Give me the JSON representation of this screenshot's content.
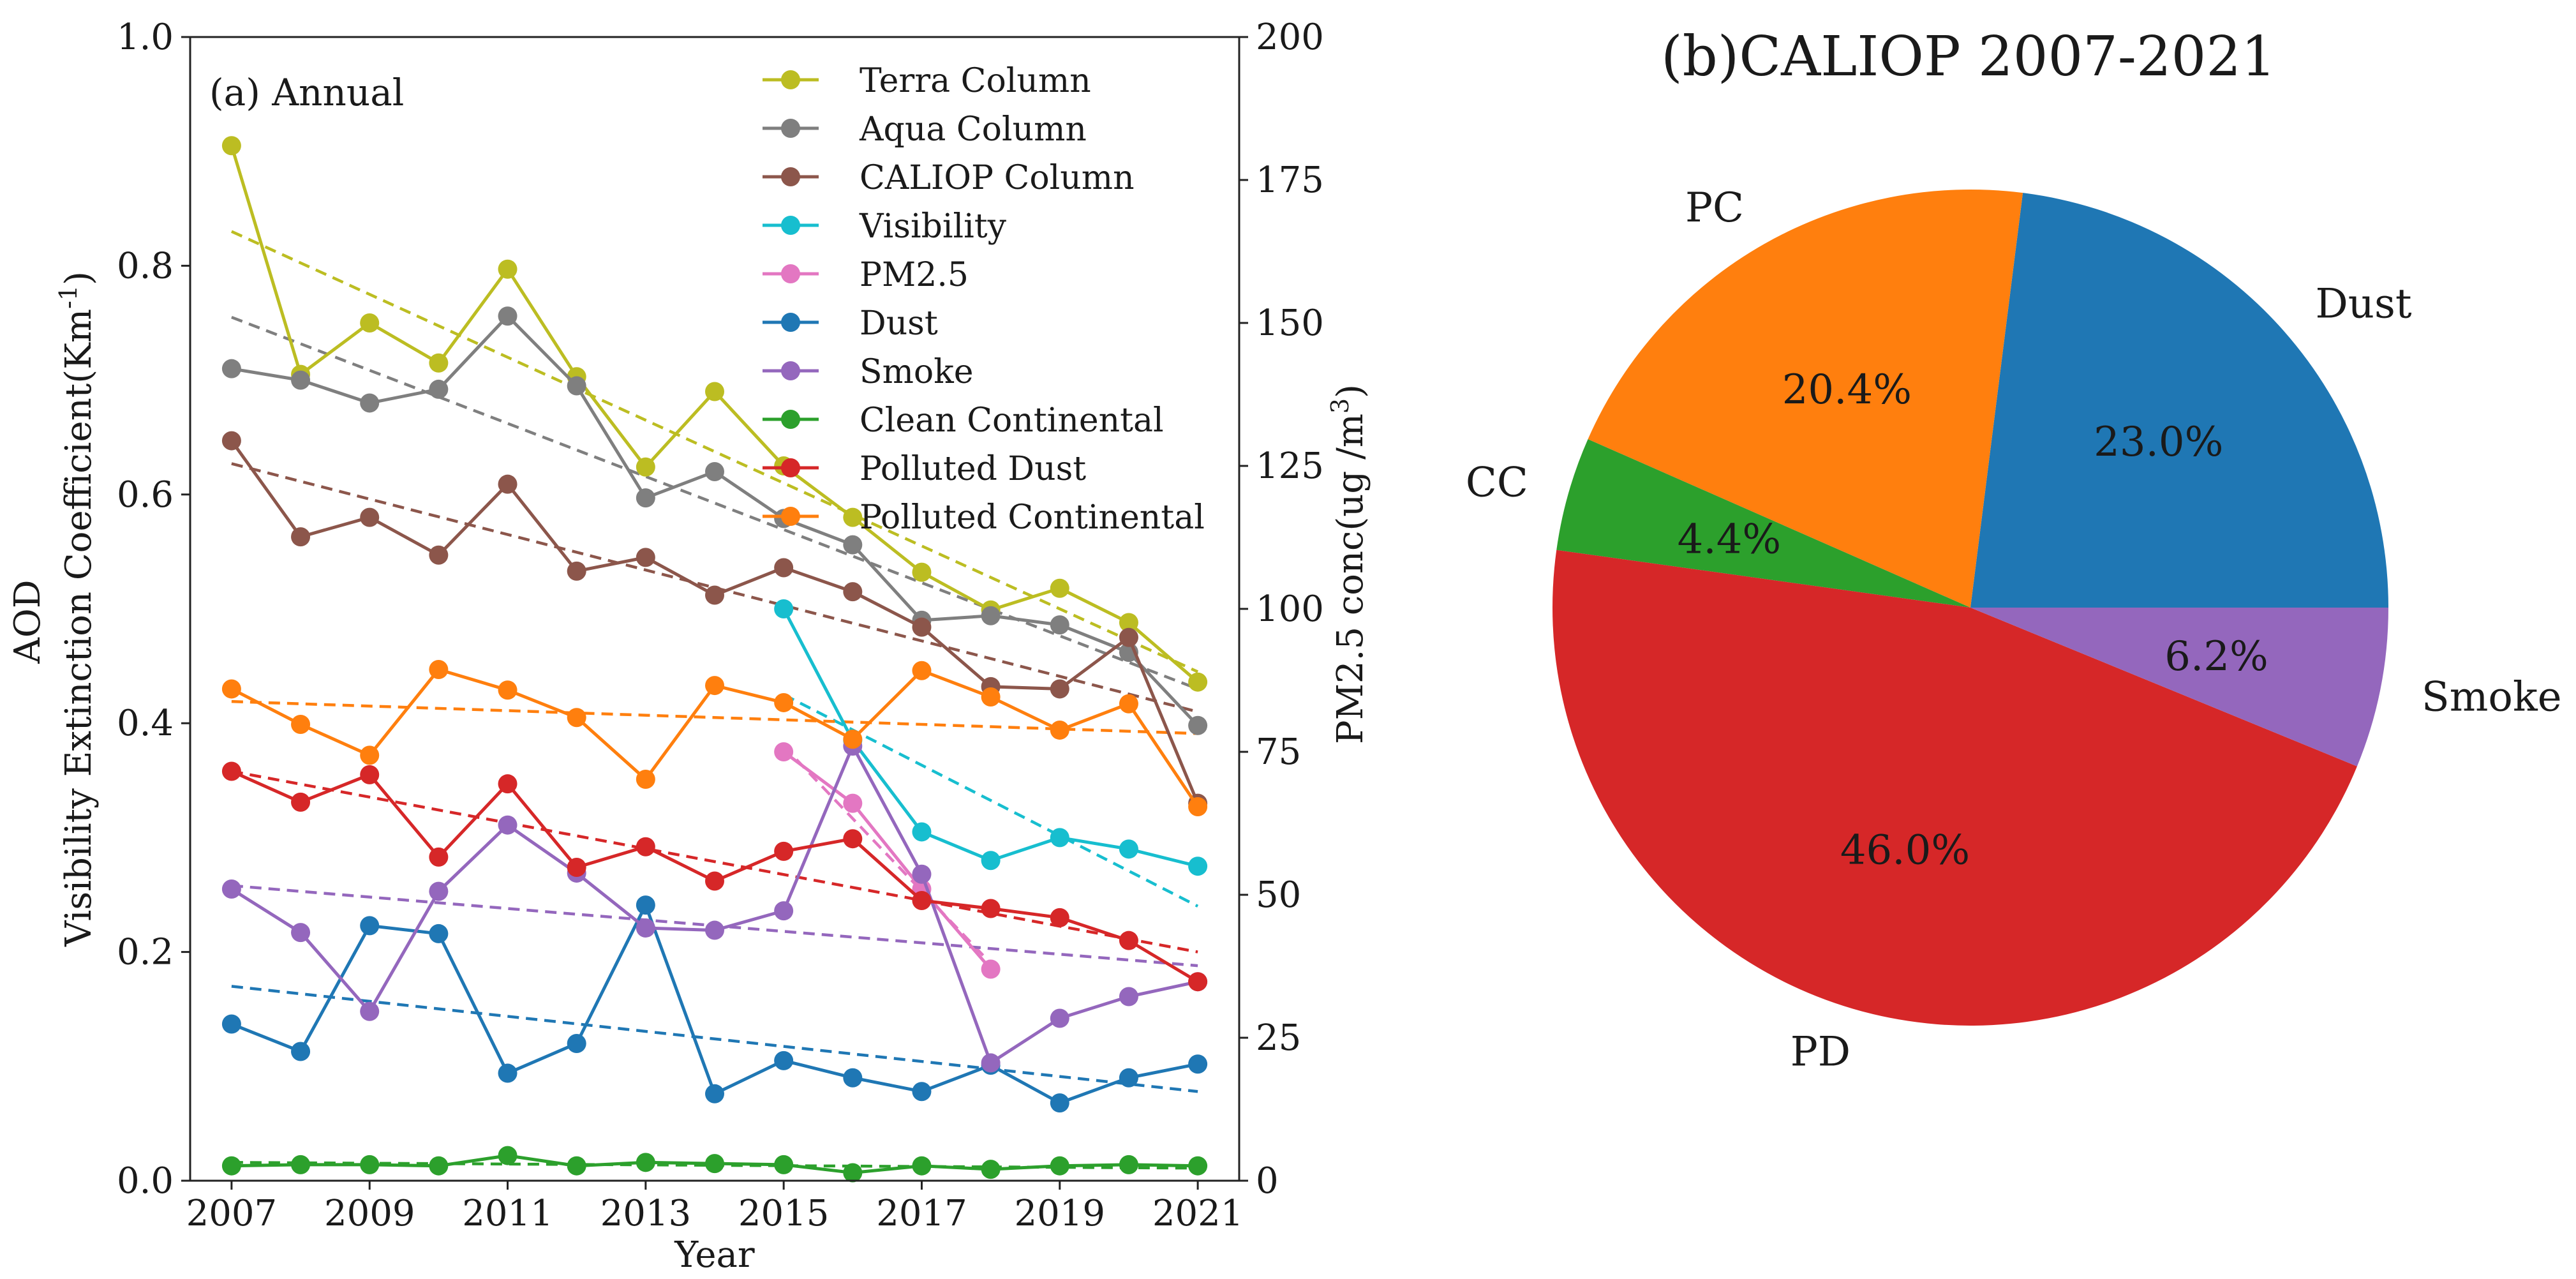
{
  "chart_data": [
    {
      "type": "line",
      "panel_label": "(a) Annual",
      "xlabel": "Year",
      "ylabel_line1": "AOD",
      "ylabel_line2": "Visibility Extinction Coefficient(Km",
      "ylabel_line2_sup": "-1",
      "ylabel_line2_end": ")",
      "y2label": "PM2.5 conc(ug /m",
      "y2label_sup": "3",
      "y2label_end": ")",
      "xlim": [
        2006.4,
        2021.6
      ],
      "ylim": [
        0.0,
        1.0
      ],
      "y2lim": [
        0,
        200
      ],
      "xticks": [
        2007,
        2009,
        2011,
        2013,
        2015,
        2017,
        2019,
        2021
      ],
      "yticks": [
        "0.0",
        "0.2",
        "0.4",
        "0.6",
        "0.8",
        "1.0"
      ],
      "y2ticks": [
        "0",
        "25",
        "50",
        "75",
        "100",
        "125",
        "150",
        "175",
        "200"
      ],
      "legend_position": "top-right",
      "series": [
        {
          "name": "Terra Column",
          "color": "#bcbd22",
          "axis": "left",
          "x": [
            2007,
            2008,
            2009,
            2010,
            2011,
            2012,
            2013,
            2014,
            2015,
            2016,
            2017,
            2018,
            2019,
            2020,
            2021
          ],
          "values": [
            0.905,
            0.705,
            0.75,
            0.715,
            0.797,
            0.703,
            0.624,
            0.69,
            0.625,
            0.58,
            0.532,
            0.499,
            0.518,
            0.488,
            0.436
          ],
          "trend": [
            0.83,
            0.445
          ]
        },
        {
          "name": "Aqua Column",
          "color": "#7f7f7f",
          "axis": "left",
          "x": [
            2007,
            2008,
            2009,
            2010,
            2011,
            2012,
            2013,
            2014,
            2015,
            2016,
            2017,
            2018,
            2019,
            2020,
            2021
          ],
          "values": [
            0.71,
            0.7,
            0.68,
            0.692,
            0.756,
            0.695,
            0.597,
            0.62,
            0.579,
            0.556,
            0.49,
            0.494,
            0.486,
            0.462,
            0.398
          ],
          "trend": [
            0.755,
            0.43
          ]
        },
        {
          "name": "CALIOP Column",
          "color": "#8c564b",
          "axis": "left",
          "x": [
            2007,
            2008,
            2009,
            2010,
            2011,
            2012,
            2013,
            2014,
            2015,
            2016,
            2017,
            2018,
            2019,
            2020,
            2021
          ],
          "values": [
            0.647,
            0.563,
            0.58,
            0.547,
            0.609,
            0.533,
            0.545,
            0.512,
            0.536,
            0.515,
            0.484,
            0.432,
            0.43,
            0.475,
            0.33
          ],
          "trend": [
            0.627,
            0.41
          ]
        },
        {
          "name": "Visibility",
          "color": "#17becf",
          "axis": "right",
          "x": [
            2015,
            2016,
            2017,
            2018,
            2019,
            2020,
            2021
          ],
          "values": [
            100,
            77,
            61,
            56,
            60,
            58,
            55
          ],
          "trend": [
            85,
            48
          ]
        },
        {
          "name": "PM2.5",
          "color": "#e377c2",
          "axis": "right",
          "x": [
            2015,
            2016,
            2017,
            2018
          ],
          "values": [
            75,
            66,
            51,
            37
          ],
          "trend": [
            76,
            38
          ]
        },
        {
          "name": "Dust",
          "color": "#1f77b4",
          "axis": "left",
          "x": [
            2007,
            2008,
            2009,
            2010,
            2011,
            2012,
            2013,
            2014,
            2015,
            2016,
            2017,
            2018,
            2019,
            2020,
            2021
          ],
          "values": [
            0.137,
            0.113,
            0.223,
            0.216,
            0.094,
            0.12,
            0.241,
            0.076,
            0.105,
            0.09,
            0.078,
            0.101,
            0.068,
            0.09,
            0.102
          ],
          "trend": [
            0.17,
            0.078
          ]
        },
        {
          "name": "Smoke",
          "color": "#9467bd",
          "axis": "left",
          "x": [
            2007,
            2008,
            2009,
            2010,
            2011,
            2012,
            2013,
            2014,
            2015,
            2016,
            2017,
            2018,
            2019,
            2020,
            2021
          ],
          "values": [
            0.255,
            0.217,
            0.148,
            0.253,
            0.311,
            0.269,
            0.221,
            0.219,
            0.236,
            0.38,
            0.268,
            0.103,
            0.142,
            0.161,
            0.174
          ],
          "trend": [
            0.258,
            0.188
          ]
        },
        {
          "name": "Clean Continental",
          "color": "#2ca02c",
          "axis": "left",
          "x": [
            2007,
            2008,
            2009,
            2010,
            2011,
            2012,
            2013,
            2014,
            2015,
            2016,
            2017,
            2018,
            2019,
            2020,
            2021
          ],
          "values": [
            0.013,
            0.014,
            0.014,
            0.013,
            0.022,
            0.013,
            0.016,
            0.015,
            0.014,
            0.007,
            0.013,
            0.01,
            0.013,
            0.014,
            0.013
          ],
          "trend": [
            0.016,
            0.011
          ]
        },
        {
          "name": "Polluted Dust",
          "color": "#d62728",
          "axis": "left",
          "x": [
            2007,
            2008,
            2009,
            2010,
            2011,
            2012,
            2013,
            2014,
            2015,
            2016,
            2017,
            2018,
            2019,
            2020,
            2021
          ],
          "values": [
            0.358,
            0.331,
            0.355,
            0.283,
            0.347,
            0.274,
            0.292,
            0.262,
            0.288,
            0.299,
            0.245,
            0.238,
            0.23,
            0.21,
            0.174
          ],
          "trend": [
            0.358,
            0.2
          ]
        },
        {
          "name": "Polluted Continental",
          "color": "#ff7f0e",
          "axis": "left",
          "x": [
            2007,
            2008,
            2009,
            2010,
            2011,
            2012,
            2013,
            2014,
            2015,
            2016,
            2017,
            2018,
            2019,
            2020,
            2021
          ],
          "values": [
            0.43,
            0.399,
            0.372,
            0.447,
            0.429,
            0.405,
            0.351,
            0.433,
            0.418,
            0.386,
            0.446,
            0.423,
            0.394,
            0.417,
            0.327
          ],
          "trend": [
            0.419,
            0.391
          ]
        }
      ]
    },
    {
      "type": "pie",
      "title": "(b)CALIOP 2007-2021",
      "start_angle_deg": 0,
      "direction": "counterclockwise",
      "slices": [
        {
          "label": "Dust",
          "value": 23.0,
          "pct": "23.0%",
          "color": "#1f77b4"
        },
        {
          "label": "PC",
          "value": 20.4,
          "pct": "20.4%",
          "color": "#ff7f0e"
        },
        {
          "label": "CC",
          "value": 4.4,
          "pct": "4.4%",
          "color": "#2ca02c"
        },
        {
          "label": "PD",
          "value": 46.0,
          "pct": "46.0%",
          "color": "#d62728"
        },
        {
          "label": "Smoke",
          "value": 6.2,
          "pct": "6.2%",
          "color": "#9467bd"
        }
      ]
    }
  ]
}
